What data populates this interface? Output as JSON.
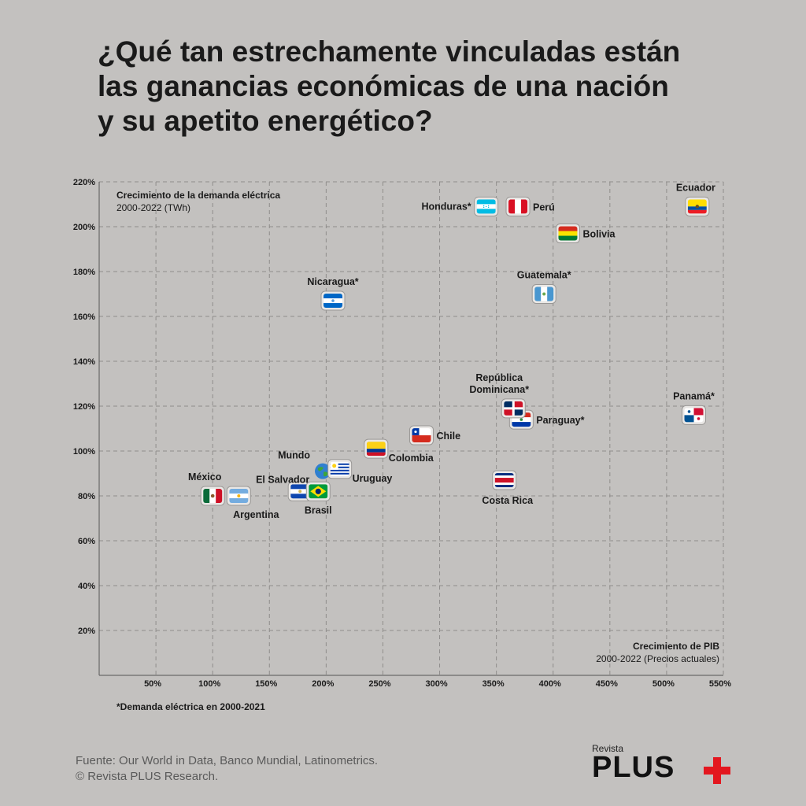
{
  "title_lines": [
    "¿Qué tan estrechamente vinculadas están",
    "las ganancias económicas de una nación",
    "y su apetito energético?"
  ],
  "y_axis_label": "Crecimiento de la demanda eléctrica",
  "y_axis_sub": "2000-2022 (TWh)",
  "x_axis_label": "Crecimiento de PIB",
  "x_axis_sub": "2000-2022 (Precios actuales)",
  "footnote": "*Demanda eléctrica en 2000-2021",
  "source_line1": "Fuente:  Our World in Data, Banco Mundial, Latinometrics.",
  "source_line2": "© Revista PLUS Research.",
  "brand_small": "Revista",
  "brand_big": "PLUS",
  "brand_color": "#e3171f",
  "chart_data": {
    "type": "scatter",
    "grid": true,
    "x_ticks": [
      "50%",
      "100%",
      "150%",
      "200%",
      "250%",
      "300%",
      "350%",
      "400%",
      "450%",
      "500%",
      "550%"
    ],
    "y_ticks": [
      "20%",
      "40%",
      "60%",
      "80%",
      "100%",
      "120%",
      "140%",
      "160%",
      "180%",
      "200%",
      "220%"
    ],
    "xlim": [
      0,
      550
    ],
    "ylim": [
      0,
      220
    ],
    "points": [
      {
        "name": "México",
        "x": 100,
        "y": 80,
        "flag": "mexico",
        "label_pos": "above"
      },
      {
        "name": "Argentina",
        "x": 123,
        "y": 80,
        "flag": "argentina",
        "label_pos": "below"
      },
      {
        "name": "El Salvador",
        "x": 177,
        "y": 82,
        "flag": "el-salvador",
        "label_pos": "above-left"
      },
      {
        "name": "Brasil",
        "x": 193,
        "y": 82,
        "flag": "brazil",
        "label_pos": "below"
      },
      {
        "name": "Mundo",
        "x": 197,
        "y": 91,
        "flag": "world",
        "label_pos": "above-left"
      },
      {
        "name": "Uruguay",
        "x": 212,
        "y": 92,
        "flag": "uruguay",
        "label_pos": "below-right"
      },
      {
        "name": "Colombia",
        "x": 244,
        "y": 101,
        "flag": "colombia",
        "label_pos": "below-right"
      },
      {
        "name": "Chile",
        "x": 284,
        "y": 107,
        "flag": "chile",
        "label_pos": "right"
      },
      {
        "name": "Costa Rica",
        "x": 357,
        "y": 87,
        "flag": "costa-rica",
        "label_pos": "below"
      },
      {
        "name": "Paraguay*",
        "x": 372,
        "y": 114,
        "flag": "paraguay",
        "label_pos": "right"
      },
      {
        "name": "República Dominicana*",
        "label_lines": [
          "República",
          "Dominicana*"
        ],
        "x": 365,
        "y": 119,
        "flag": "dominican",
        "label_pos": "above"
      },
      {
        "name": "Panamá*",
        "x": 524,
        "y": 116,
        "flag": "panama",
        "label_pos": "above"
      },
      {
        "name": "Nicaragua*",
        "x": 206,
        "y": 167,
        "flag": "nicaragua",
        "label_pos": "above"
      },
      {
        "name": "Guatemala*",
        "x": 392,
        "y": 170,
        "flag": "guatemala",
        "label_pos": "above"
      },
      {
        "name": "Honduras*",
        "x": 341,
        "y": 209,
        "flag": "honduras",
        "label_pos": "left"
      },
      {
        "name": "Perú",
        "x": 369,
        "y": 209,
        "flag": "peru",
        "label_pos": "right"
      },
      {
        "name": "Bolivia",
        "x": 413,
        "y": 197,
        "flag": "bolivia",
        "label_pos": "right"
      },
      {
        "name": "Ecuador",
        "x": 527,
        "y": 209,
        "flag": "ecuador",
        "label_pos": "above"
      }
    ]
  }
}
